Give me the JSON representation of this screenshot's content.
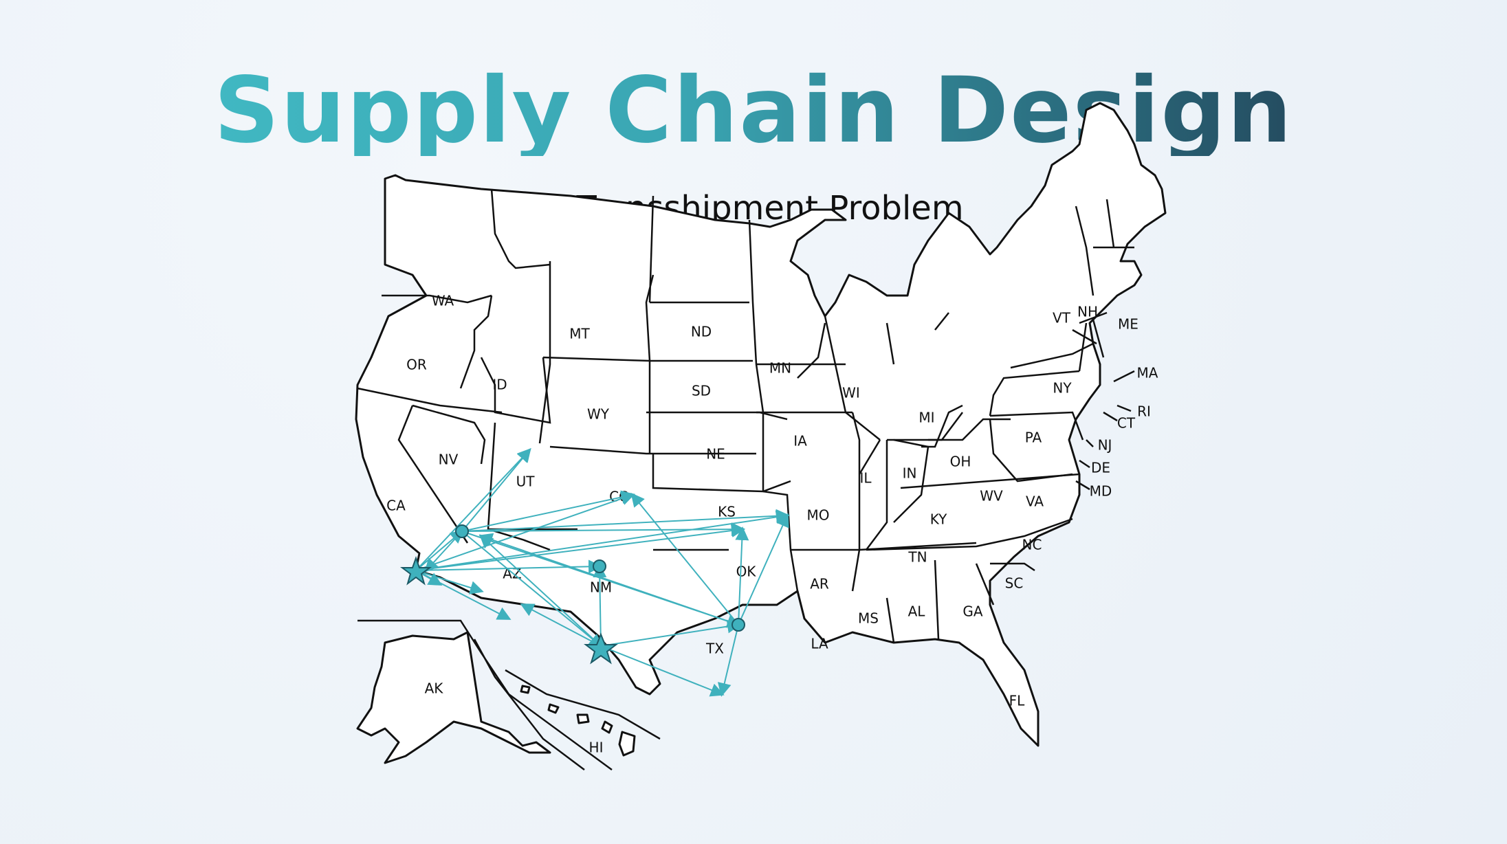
{
  "slide": {
    "title": "Supply Chain Design",
    "subtitle": "A Transshipment Problem"
  },
  "colors": {
    "route": "#3fb1bd",
    "title_start": "#44c0c9",
    "title_end": "#1f2e44"
  },
  "map": {
    "state_labels": [
      "WA",
      "OR",
      "CA",
      "NV",
      "ID",
      "MT",
      "WY",
      "UT",
      "AZ",
      "CO",
      "NM",
      "ND",
      "SD",
      "NE",
      "KS",
      "OK",
      "TX",
      "MN",
      "IA",
      "MO",
      "AR",
      "LA",
      "WI",
      "IL",
      "MI",
      "IN",
      "OH",
      "KY",
      "TN",
      "MS",
      "AL",
      "GA",
      "FL",
      "SC",
      "NC",
      "VA",
      "WV",
      "PA",
      "NY",
      "VT",
      "NH",
      "ME",
      "MA",
      "RI",
      "CT",
      "NJ",
      "DE",
      "MD",
      "AK",
      "HI"
    ]
  },
  "network": {
    "supply_nodes": [
      "star-ca",
      "star-nm-tx"
    ],
    "transshipment_nodes": [
      "hub-nv",
      "hub-nm",
      "hub-tx"
    ],
    "route_count": 26
  }
}
